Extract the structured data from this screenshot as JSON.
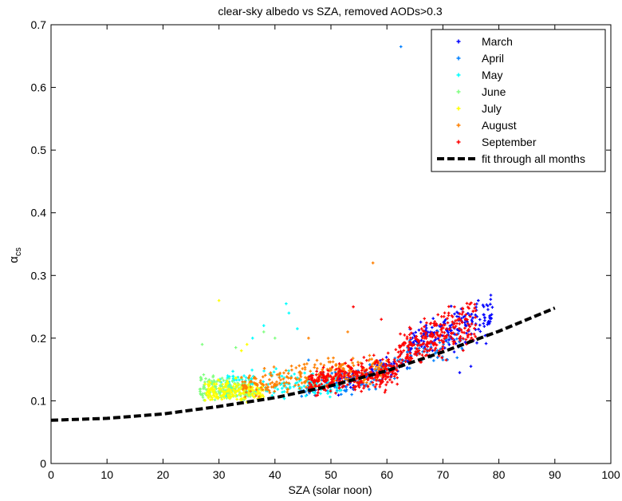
{
  "chart_data": {
    "type": "scatter",
    "title": "clear-sky albedo vs SZA, removed AODs>0.3",
    "xlabel": "SZA (solar noon)",
    "ylabel_main": "α",
    "ylabel_sub": "cs",
    "xlim": [
      0,
      100
    ],
    "ylim": [
      0,
      0.7
    ],
    "xticks": [
      "0",
      "10",
      "20",
      "30",
      "40",
      "50",
      "60",
      "70",
      "80",
      "90",
      "100"
    ],
    "yticks": [
      "0",
      "0.1",
      "0.2",
      "0.3",
      "0.4",
      "0.5",
      "0.6",
      "0.7"
    ],
    "grid": false,
    "legend_position": "top-right",
    "series": [
      {
        "name": "March",
        "color": "#0000ff",
        "clouds": [
          {
            "x": [
              50,
              64
            ],
            "ymin": [
              0.1,
              0.14
            ],
            "ymax": [
              0.14,
              0.19
            ],
            "n": 90
          },
          {
            "x": [
              64,
              79
            ],
            "ymin": [
              0.16,
              0.18
            ],
            "ymax": [
              0.23,
              0.29
            ],
            "n": 180
          }
        ],
        "outliers": [
          [
            73,
            0.145
          ],
          [
            75,
            0.155
          ]
        ]
      },
      {
        "name": "April",
        "color": "#0080ff",
        "clouds": [
          {
            "x": [
              44,
              62
            ],
            "ymin": [
              0.09,
              0.12
            ],
            "ymax": [
              0.14,
              0.18
            ],
            "n": 110
          },
          {
            "x": [
              62,
              74
            ],
            "ymin": [
              0.14,
              0.16
            ],
            "ymax": [
              0.2,
              0.24
            ],
            "n": 70
          }
        ],
        "outliers": [
          [
            62.5,
            0.665
          ],
          [
            46,
            0.165
          ]
        ]
      },
      {
        "name": "May",
        "color": "#00ffff",
        "clouds": [
          {
            "x": [
              30,
              52
            ],
            "ymin": [
              0.09,
              0.1
            ],
            "ymax": [
              0.16,
              0.15
            ],
            "n": 160
          }
        ],
        "outliers": [
          [
            42,
            0.255
          ],
          [
            42.5,
            0.24
          ],
          [
            38,
            0.22
          ],
          [
            36,
            0.2
          ],
          [
            44,
            0.215
          ]
        ]
      },
      {
        "name": "June",
        "color": "#80ff80",
        "clouds": [
          {
            "x": [
              26.5,
              36
            ],
            "ymin": [
              0.09,
              0.09
            ],
            "ymax": [
              0.15,
              0.14
            ],
            "n": 170
          }
        ],
        "outliers": [
          [
            38,
            0.21
          ],
          [
            40,
            0.2
          ],
          [
            27,
            0.19
          ],
          [
            33,
            0.185
          ]
        ]
      },
      {
        "name": "July",
        "color": "#ffff00",
        "clouds": [
          {
            "x": [
              27.5,
              38
            ],
            "ymin": [
              0.09,
              0.09
            ],
            "ymax": [
              0.14,
              0.14
            ],
            "n": 180
          }
        ],
        "outliers": [
          [
            30,
            0.26
          ],
          [
            34,
            0.18
          ],
          [
            35,
            0.19
          ]
        ]
      },
      {
        "name": "August",
        "color": "#ff8000",
        "clouds": [
          {
            "x": [
              34,
              60
            ],
            "ymin": [
              0.095,
              0.12
            ],
            "ymax": [
              0.155,
              0.19
            ],
            "n": 260
          }
        ],
        "outliers": [
          [
            57.5,
            0.32
          ],
          [
            46,
            0.2
          ],
          [
            53,
            0.21
          ]
        ]
      },
      {
        "name": "September",
        "color": "#ff0000",
        "clouds": [
          {
            "x": [
              46,
              62
            ],
            "ymin": [
              0.1,
              0.11
            ],
            "ymax": [
              0.155,
              0.19
            ],
            "n": 320
          },
          {
            "x": [
              62,
              76
            ],
            "ymin": [
              0.14,
              0.17
            ],
            "ymax": [
              0.22,
              0.29
            ],
            "n": 260
          }
        ],
        "outliers": [
          [
            54,
            0.25
          ],
          [
            59,
            0.23
          ]
        ]
      }
    ],
    "fit": {
      "name": "fit through all months",
      "color": "#000000",
      "style": "dashed",
      "x": [
        0,
        10,
        20,
        30,
        40,
        50,
        60,
        70,
        80,
        90
      ],
      "y": [
        0.069,
        0.072,
        0.079,
        0.091,
        0.105,
        0.124,
        0.148,
        0.178,
        0.211,
        0.248
      ]
    }
  }
}
